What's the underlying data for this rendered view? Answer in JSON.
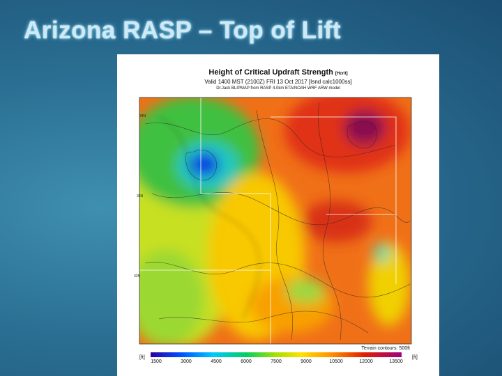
{
  "title": "Arizona RASP – Top of Lift",
  "map": {
    "heading": "Height of Critical Updraft Strength",
    "heading_tag": "[Hcrit]",
    "valid": "Valid 1400 MST (2100Z) FRI 13 Oct 2017 [Isnd calc1000ss]",
    "source": "Dr.Jack BLIPMAP from RASP 4.0km ETA/NOAH WRF ARW model",
    "latitude_labels": [
      "34N",
      "33N",
      "32N"
    ],
    "terrain_note": "Terrain contours: 500ft",
    "colorbar": {
      "unit_left": "[ft]",
      "unit_right": "[ft]",
      "ticks": [
        "1500",
        "3000",
        "4500",
        "6000",
        "7500",
        "9000",
        "10500",
        "12000",
        "13500"
      ]
    }
  }
}
